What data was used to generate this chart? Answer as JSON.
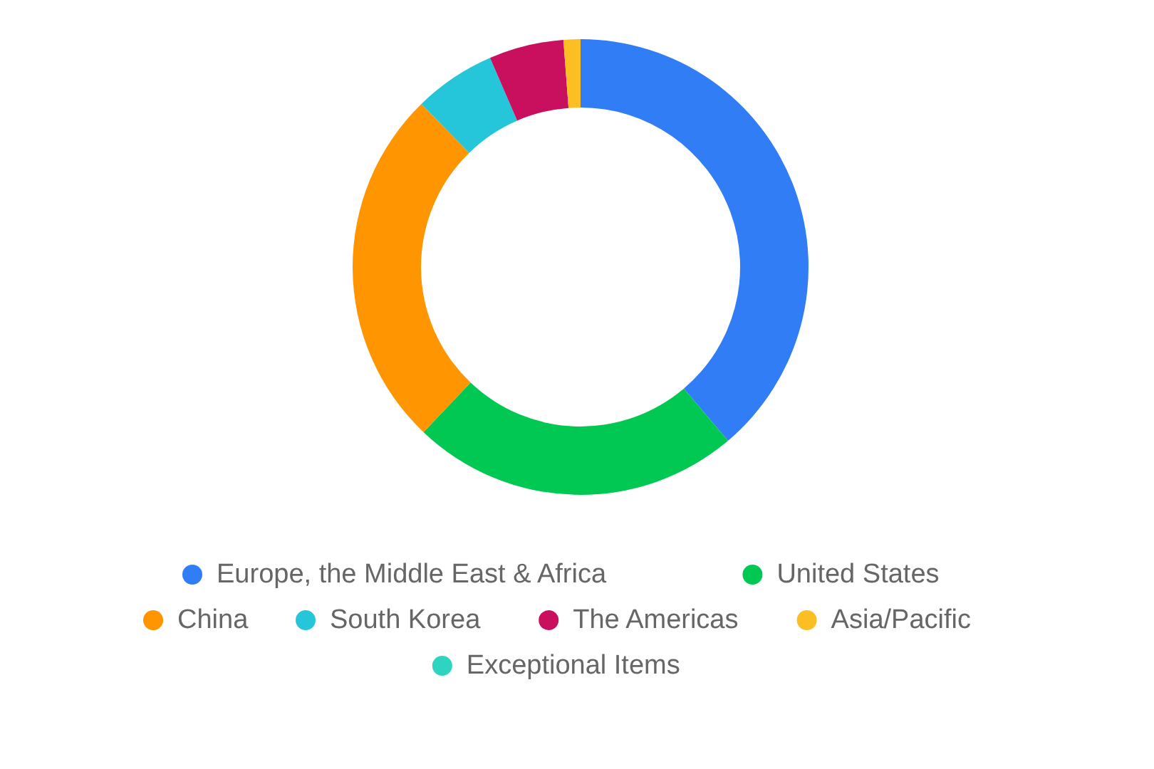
{
  "chart_data": {
    "type": "donut",
    "categories": [
      "Europe, the Middle East & Africa",
      "United States",
      "China",
      "South Korea",
      "The Americas",
      "Asia/Pacific",
      "Exceptional Items"
    ],
    "values": [
      38.8,
      23.3,
      25.6,
      5.8,
      5.3,
      1.2,
      0
    ],
    "colors": [
      "#307df6",
      "#00c853",
      "#ff9500",
      "#26c6da",
      "#c8105f",
      "#fbbf24",
      "#2dd4bf"
    ],
    "legend": "bottom"
  }
}
